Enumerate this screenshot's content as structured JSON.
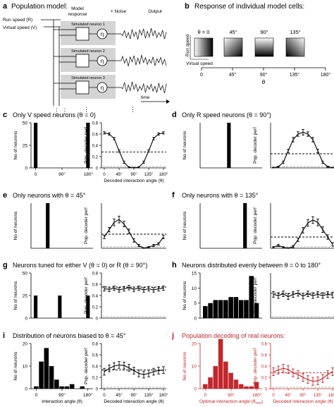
{
  "panel_a": {
    "letter": "a",
    "title": "Population model:",
    "run_speed_label": "Run speed (R)",
    "virtual_speed_label": "Virtual speed (V)",
    "col_model_response": "Model response",
    "col_noise": "+ Noise",
    "col_output": "Output",
    "neurons": [
      "Simulated neuron 1",
      "Simulated neuron 2",
      "Simulated neuron 3"
    ],
    "eta_symbol": "η",
    "time_label": "time"
  },
  "panel_b": {
    "letter": "b",
    "title": "Response of individual model cells:",
    "y_label": "Run speed",
    "x_label": "Virtual speed",
    "cells": [
      {
        "theta_label": "θ = 0",
        "theta": 0
      },
      {
        "theta_label": "45°",
        "theta": 45
      },
      {
        "theta_label": "90°",
        "theta": 90
      },
      {
        "theta_label": "135°",
        "theta": 135
      }
    ],
    "axis_ticks": [
      "0",
      "45°",
      "90°",
      "135°",
      "180°"
    ],
    "axis_label": "θ"
  },
  "chart_data": [
    {
      "panel": "c",
      "title": "Only V speed neurons (θ = 0)",
      "title_color": "#000000",
      "data_color": "#000000",
      "histogram": {
        "type": "bar",
        "ylabel": "No of neurons",
        "xlabel": "",
        "ylim": [
          0,
          50
        ],
        "yticks": [
          "0",
          "25",
          "50"
        ],
        "xticks": [
          "0",
          "90°",
          "180°"
        ],
        "values": [
          50,
          0,
          0,
          0,
          0,
          0,
          0,
          0,
          0,
          0,
          0,
          0,
          0,
          50
        ]
      },
      "decoder": {
        "type": "line",
        "ylabel": "Pop. decoder perf",
        "xlabel": "Decoded interaction angle (θ)",
        "ylim": [
          0,
          0.8
        ],
        "yticks": [
          "0",
          "0.2",
          "0.4",
          "0.6",
          "0.8"
        ],
        "xticks": [
          "0",
          "45°",
          "90°",
          "135°",
          "180°"
        ],
        "x": [
          0,
          15,
          30,
          45,
          60,
          75,
          90,
          105,
          120,
          135,
          150,
          165,
          180
        ],
        "y": [
          0.62,
          0.6,
          0.52,
          0.3,
          0.1,
          0.01,
          0.0,
          0.01,
          0.1,
          0.3,
          0.52,
          0.6,
          0.62
        ],
        "err": [
          0.02,
          0.02,
          0.02,
          0.02,
          0.02,
          0.01,
          0.01,
          0.01,
          0.02,
          0.02,
          0.02,
          0.02,
          0.02
        ],
        "chance": 0.28
      }
    },
    {
      "panel": "d",
      "title": "Only R speed neurons (θ = 90°)",
      "title_color": "#000000",
      "data_color": "#000000",
      "histogram": {
        "type": "bar",
        "ylabel": "No of neurons",
        "xlabel": "",
        "ylim": [
          0,
          50
        ],
        "yticks": [],
        "xticks": [],
        "values": [
          0,
          0,
          0,
          0,
          0,
          0,
          50,
          0,
          0,
          0,
          0,
          0,
          0,
          0
        ]
      },
      "decoder": {
        "type": "line",
        "ylabel": "Pop. decoder perf",
        "xlabel": "",
        "ylim": [
          0,
          0.8
        ],
        "yticks": [],
        "xticks": [],
        "x": [
          0,
          15,
          30,
          45,
          60,
          75,
          90,
          105,
          120,
          135,
          150,
          165,
          180
        ],
        "y": [
          0.0,
          0.02,
          0.1,
          0.3,
          0.5,
          0.6,
          0.63,
          0.6,
          0.5,
          0.3,
          0.1,
          0.02,
          0.0
        ],
        "err": [
          0.01,
          0.01,
          0.02,
          0.03,
          0.04,
          0.04,
          0.05,
          0.04,
          0.04,
          0.03,
          0.02,
          0.01,
          0.01
        ],
        "chance": 0.25
      }
    },
    {
      "panel": "e",
      "title": "Only neurons with θ = 45°",
      "title_color": "#000000",
      "data_color": "#000000",
      "histogram": {
        "type": "bar",
        "ylabel": "No of neurons",
        "xlabel": "",
        "ylim": [
          0,
          50
        ],
        "yticks": [],
        "xticks": [],
        "values": [
          0,
          0,
          0,
          50,
          0,
          0,
          0,
          0,
          0,
          0,
          0,
          0,
          0,
          0
        ]
      },
      "decoder": {
        "type": "line",
        "ylabel": "Pop. decoder perf",
        "xlabel": "",
        "ylim": [
          0,
          0.8
        ],
        "yticks": [],
        "xticks": [],
        "x": [
          0,
          15,
          30,
          45,
          60,
          75,
          90,
          105,
          120,
          135,
          150,
          165,
          180
        ],
        "y": [
          0.2,
          0.33,
          0.46,
          0.51,
          0.43,
          0.3,
          0.14,
          0.05,
          0.0,
          0.02,
          0.05,
          0.08,
          0.2
        ],
        "err": [
          0.03,
          0.04,
          0.06,
          0.06,
          0.05,
          0.04,
          0.03,
          0.02,
          0.01,
          0.01,
          0.02,
          0.02,
          0.03
        ],
        "chance": 0.25
      }
    },
    {
      "panel": "f",
      "title": "Only neurons with θ = 135°",
      "title_color": "#000000",
      "data_color": "#000000",
      "histogram": {
        "type": "bar",
        "ylabel": "No of neurons",
        "xlabel": "",
        "ylim": [
          0,
          50
        ],
        "yticks": [],
        "xticks": [],
        "values": [
          0,
          0,
          0,
          0,
          0,
          0,
          0,
          0,
          0,
          0,
          50,
          0,
          0,
          0
        ]
      },
      "decoder": {
        "type": "line",
        "ylabel": "Pop. decoder perf",
        "xlabel": "",
        "ylim": [
          0,
          0.8
        ],
        "yticks": [],
        "xticks": [],
        "x": [
          0,
          15,
          30,
          45,
          60,
          75,
          90,
          105,
          120,
          135,
          150,
          165,
          180
        ],
        "y": [
          0.02,
          0.05,
          0.02,
          0.0,
          0.03,
          0.15,
          0.32,
          0.45,
          0.5,
          0.46,
          0.33,
          0.2,
          0.07
        ],
        "err": [
          0.01,
          0.02,
          0.01,
          0.01,
          0.02,
          0.03,
          0.05,
          0.06,
          0.06,
          0.06,
          0.05,
          0.04,
          0.03
        ],
        "chance": 0.2
      }
    },
    {
      "panel": "g",
      "title": "Neurons tuned for either V (θ = 0) or R (θ = 90°)",
      "title_color": "#000000",
      "data_color": "#000000",
      "histogram": {
        "type": "bar",
        "ylabel": "No of neurons",
        "xlabel": "",
        "ylim": [
          0,
          50
        ],
        "yticks": [
          "0",
          "25",
          "50"
        ],
        "xticks": [],
        "values": [
          25,
          0,
          0,
          0,
          0,
          0,
          25,
          0,
          0,
          0,
          0,
          0,
          0,
          25
        ]
      },
      "decoder": {
        "type": "line",
        "ylabel": "Pop. decoder perf",
        "xlabel": "",
        "ylim": [
          0,
          0.8
        ],
        "yticks": [
          "0",
          "0.2",
          "0.4",
          "0.6",
          "0.8"
        ],
        "xticks": [],
        "x": [
          0,
          15,
          30,
          45,
          60,
          75,
          90,
          105,
          120,
          135,
          150,
          165,
          180
        ],
        "y": [
          0.52,
          0.51,
          0.53,
          0.5,
          0.52,
          0.54,
          0.51,
          0.53,
          0.5,
          0.52,
          0.5,
          0.52,
          0.53
        ],
        "err": [
          0.04,
          0.04,
          0.04,
          0.04,
          0.04,
          0.04,
          0.04,
          0.04,
          0.04,
          0.04,
          0.04,
          0.04,
          0.04
        ],
        "chance": 0.55
      }
    },
    {
      "panel": "h",
      "title": "Neurons distributed evenly between θ = 0 to 180°",
      "title_color": "#000000",
      "data_color": "#000000",
      "histogram": {
        "type": "bar",
        "ylabel": "No of neurons",
        "xlabel": "",
        "ylim": [
          0,
          15
        ],
        "yticks": [
          "0",
          "5",
          "10",
          "15"
        ],
        "xticks": [],
        "values": [
          4,
          5,
          6,
          6,
          6,
          7,
          7,
          6,
          6,
          14,
          5
        ]
      },
      "decoder": {
        "type": "line",
        "ylabel": "Pop. decoder perf",
        "xlabel": "",
        "ylim": [
          0,
          0.8
        ],
        "yticks": [],
        "xticks": [],
        "x": [
          0,
          15,
          30,
          45,
          60,
          75,
          90,
          105,
          120,
          135,
          150,
          165,
          180
        ],
        "y": [
          0.42,
          0.4,
          0.43,
          0.38,
          0.42,
          0.44,
          0.39,
          0.43,
          0.4,
          0.42,
          0.4,
          0.42,
          0.41
        ],
        "err": [
          0.05,
          0.05,
          0.05,
          0.05,
          0.05,
          0.05,
          0.05,
          0.05,
          0.05,
          0.05,
          0.05,
          0.05,
          0.05
        ],
        "chance": 0.44
      }
    },
    {
      "panel": "i",
      "title": "Distribution of neurons biased to θ = 45°",
      "title_color": "#000000",
      "data_color": "#000000",
      "histogram": {
        "type": "bar",
        "ylabel": "No of neurons",
        "xlabel": "Interaction angle (θ)",
        "ylim": [
          0,
          20
        ],
        "yticks": [
          "0",
          "10",
          "20"
        ],
        "xticks": [
          "0",
          "90°",
          "180°"
        ],
        "values": [
          1,
          12,
          18,
          10,
          4,
          1,
          1,
          2,
          0,
          1,
          0
        ]
      },
      "decoder": {
        "type": "line",
        "ylabel": "Pop. decoder perf",
        "xlabel": "Decoded interaction angle (θ)",
        "ylim": [
          0,
          0.8
        ],
        "yticks": [
          "0",
          "0.2",
          "0.4",
          "0.6",
          "0.8"
        ],
        "xticks": [
          "0",
          "45°",
          "90°",
          "135°",
          "180°"
        ],
        "x": [
          0,
          15,
          30,
          45,
          60,
          75,
          90,
          105,
          120,
          135,
          150,
          165,
          180
        ],
        "y": [
          0.3,
          0.36,
          0.4,
          0.42,
          0.41,
          0.37,
          0.32,
          0.27,
          0.25,
          0.27,
          0.3,
          0.32,
          0.33
        ],
        "err": [
          0.06,
          0.06,
          0.06,
          0.06,
          0.06,
          0.06,
          0.06,
          0.06,
          0.06,
          0.06,
          0.06,
          0.06,
          0.06
        ],
        "chance": 0.33
      }
    },
    {
      "panel": "j",
      "title": "Population decoding of real neurons:",
      "title_color": "#c1272d",
      "data_color": "#c1272d",
      "histogram": {
        "type": "bar",
        "ylabel": "No of neurons",
        "xlabel": "Optimal interaction angle (θ",
        "xlabel_sub": "max",
        "xlabel_end": ")",
        "ylim": [
          0,
          20
        ],
        "yticks": [
          "0",
          "10",
          "20"
        ],
        "xticks": [
          "0",
          "90°",
          "180°"
        ],
        "values": [
          2,
          5,
          10,
          22,
          12,
          7,
          4,
          2,
          1,
          1,
          3
        ]
      },
      "decoder": {
        "type": "line",
        "ylabel": "Pop. decoder perf",
        "xlabel": "Decoded interaction angle (θ)",
        "ylim": [
          0,
          0.8
        ],
        "yticks": [
          "0",
          "0.2",
          "0.4",
          "0.6",
          "0.8"
        ],
        "xticks": [
          "0",
          "45°",
          "90°",
          "135°",
          "180°"
        ],
        "x": [
          0,
          15,
          30,
          45,
          60,
          75,
          90,
          105,
          120,
          135,
          150,
          165,
          180
        ],
        "y": [
          0.3,
          0.33,
          0.36,
          0.34,
          0.28,
          0.25,
          0.2,
          0.16,
          0.13,
          0.14,
          0.18,
          0.25,
          0.3
        ],
        "err": [
          0.07,
          0.07,
          0.07,
          0.07,
          0.07,
          0.07,
          0.07,
          0.07,
          0.07,
          0.07,
          0.07,
          0.07,
          0.07
        ],
        "chance": 0.28
      }
    }
  ]
}
